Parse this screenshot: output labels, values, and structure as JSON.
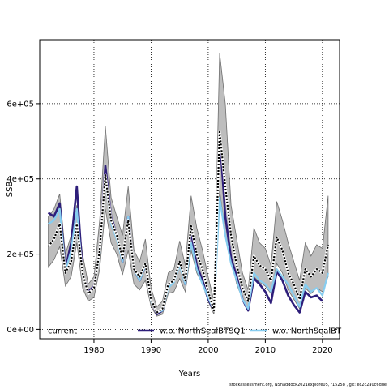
{
  "chart_data": {
    "type": "line",
    "xlabel": "Years",
    "ylabel": "SSB",
    "xlim": [
      1970.5,
      2023
    ],
    "ylim": [
      -25000,
      770000
    ],
    "x_ticks": [
      1980,
      1990,
      2000,
      2010,
      2020
    ],
    "x_tick_labels": [
      "1980",
      "1990",
      "2000",
      "2010",
      "2020"
    ],
    "y_ticks": [
      0,
      200000,
      400000,
      600000
    ],
    "y_tick_labels": [
      "0e+00",
      "2e+05",
      "4e+05",
      "6e+05"
    ],
    "grid": true,
    "legend_position": "bottom",
    "x": [
      1972,
      1973,
      1974,
      1975,
      1976,
      1977,
      1978,
      1979,
      1980,
      1981,
      1982,
      1983,
      1984,
      1985,
      1986,
      1987,
      1988,
      1989,
      1990,
      1991,
      1992,
      1993,
      1994,
      1995,
      1996,
      1997,
      1998,
      1999,
      2000,
      2001,
      2002,
      2003,
      2004,
      2005,
      2006,
      2007,
      2008,
      2009,
      2010,
      2011,
      2012,
      2013,
      2014,
      2015,
      2016,
      2017,
      2018,
      2019,
      2020,
      2021
    ],
    "series": [
      {
        "name": "current",
        "color": "#000000",
        "values": [
          220000,
          240000,
          280000,
          150000,
          180000,
          280000,
          150000,
          95000,
          110000,
          210000,
          410000,
          290000,
          250000,
          190000,
          290000,
          160000,
          140000,
          175000,
          80000,
          45000,
          55000,
          120000,
          130000,
          180000,
          130000,
          275000,
          200000,
          160000,
          100000,
          50000,
          525000,
          380000,
          250000,
          170000,
          110000,
          75000,
          195000,
          170000,
          160000,
          130000,
          245000,
          210000,
          150000,
          120000,
          80000,
          160000,
          140000,
          160000,
          150000,
          225000
        ],
        "band_upper": [
          300000,
          320000,
          360000,
          200000,
          250000,
          330000,
          200000,
          120000,
          140000,
          290000,
          540000,
          350000,
          300000,
          250000,
          380000,
          210000,
          180000,
          240000,
          110000,
          60000,
          75000,
          150000,
          160000,
          235000,
          170000,
          355000,
          270000,
          210000,
          140000,
          75000,
          735000,
          600000,
          330000,
          240000,
          150000,
          105000,
          270000,
          230000,
          215000,
          170000,
          340000,
          290000,
          230000,
          180000,
          130000,
          230000,
          195000,
          225000,
          215000,
          355000
        ],
        "band_lower": [
          165000,
          185000,
          220000,
          115000,
          140000,
          230000,
          110000,
          75000,
          85000,
          160000,
          320000,
          230000,
          200000,
          145000,
          210000,
          120000,
          105000,
          130000,
          60000,
          35000,
          40000,
          95000,
          100000,
          135000,
          100000,
          210000,
          150000,
          120000,
          75000,
          40000,
          370000,
          255000,
          185000,
          120000,
          80000,
          55000,
          140000,
          125000,
          115000,
          95000,
          175000,
          150000,
          105000,
          80000,
          55000,
          110000,
          95000,
          110000,
          100000,
          140000
        ]
      },
      {
        "name": "w.o. NorthSealBTSQ1",
        "color": "#2e1e7a",
        "values": [
          310000,
          300000,
          335000,
          160000,
          230000,
          380000,
          150000,
          100000,
          115000,
          210000,
          435000,
          300000,
          250000,
          180000,
          300000,
          160000,
          130000,
          170000,
          80000,
          40000,
          50000,
          120000,
          130000,
          180000,
          120000,
          260000,
          170000,
          130000,
          80000,
          50000,
          520000,
          300000,
          190000,
          140000,
          80000,
          50000,
          135000,
          120000,
          100000,
          70000,
          155000,
          130000,
          90000,
          65000,
          45000,
          100000,
          85000,
          90000,
          75000,
          null
        ]
      },
      {
        "name": "w.o. NorthSealBT",
        "color": "#87cdf0",
        "values": [
          280000,
          290000,
          320000,
          155000,
          210000,
          320000,
          145000,
          95000,
          110000,
          200000,
          400000,
          280000,
          240000,
          180000,
          300000,
          160000,
          130000,
          170000,
          75000,
          45000,
          50000,
          110000,
          125000,
          170000,
          120000,
          230000,
          160000,
          120000,
          85000,
          50000,
          350000,
          250000,
          175000,
          130000,
          80000,
          55000,
          150000,
          130000,
          120000,
          100000,
          160000,
          140000,
          120000,
          90000,
          60000,
          120000,
          100000,
          110000,
          90000,
          150000
        ]
      }
    ]
  },
  "footer_text": "stockassessment.org,  NShaddock2021explore05,  r15258 ,  git:  ec2c2a0c6dde"
}
